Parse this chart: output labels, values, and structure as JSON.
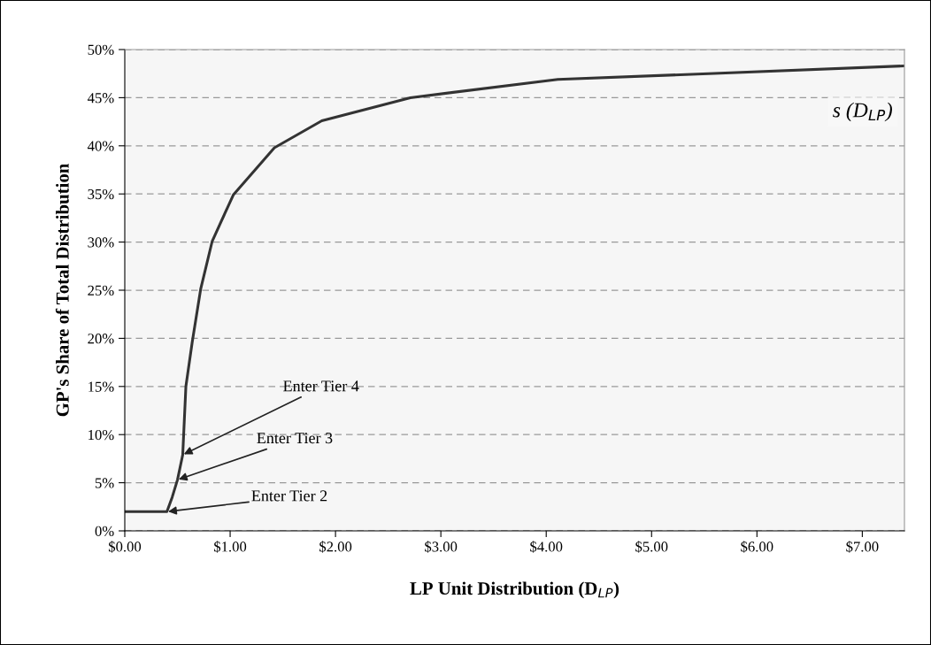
{
  "chart_data": {
    "type": "line",
    "xlabel": "LP Unit Distribution (D$_{LP}$)",
    "ylabel": "GP's Share of Total Distribution",
    "series": [
      {
        "name": "s (D$_{LP}$)",
        "color": "#333333",
        "x": [
          0,
          0.4,
          0.45,
          0.5,
          0.55,
          0.58,
          0.64,
          0.72,
          0.83,
          1.03,
          1.42,
          1.87,
          2.71,
          4.11,
          5.54,
          7.4
        ],
        "values": [
          2,
          2,
          3.5,
          5.3,
          7.9,
          15.0,
          19.6,
          25.1,
          30.1,
          34.9,
          39.8,
          42.6,
          45.0,
          46.9,
          47.5,
          48.3
        ]
      }
    ],
    "xlim": [
      0,
      7.4
    ],
    "xticks": [
      {
        "value": 0,
        "label": "$0.00"
      },
      {
        "value": 1,
        "label": "$1.00"
      },
      {
        "value": 2,
        "label": "$2.00"
      },
      {
        "value": 3,
        "label": "$3.00"
      },
      {
        "value": 4,
        "label": "$4.00"
      },
      {
        "value": 5,
        "label": "$5.00"
      },
      {
        "value": 6,
        "label": "$6.00"
      },
      {
        "value": 7,
        "label": "$7.00"
      }
    ],
    "ylim": [
      0,
      50
    ],
    "yticks": [
      {
        "value": 0,
        "label": "0%"
      },
      {
        "value": 5,
        "label": "5%"
      },
      {
        "value": 10,
        "label": "10%"
      },
      {
        "value": 15,
        "label": "15%"
      },
      {
        "value": 20,
        "label": "20%"
      },
      {
        "value": 25,
        "label": "25%"
      },
      {
        "value": 30,
        "label": "30%"
      },
      {
        "value": 35,
        "label": "35%"
      },
      {
        "value": 40,
        "label": "40%"
      },
      {
        "value": 45,
        "label": "45%"
      },
      {
        "value": 50,
        "label": "50%"
      }
    ],
    "grid": "y",
    "legend": false,
    "marker": "none",
    "line_style": "solid",
    "annotations": [
      {
        "text": "Enter Tier 2",
        "x": 0.4,
        "y": 2
      },
      {
        "text": "Enter Tier 3",
        "x": 0.5,
        "y": 5.3
      },
      {
        "text": "Enter Tier 4",
        "x": 0.55,
        "y": 7.9
      }
    ]
  }
}
